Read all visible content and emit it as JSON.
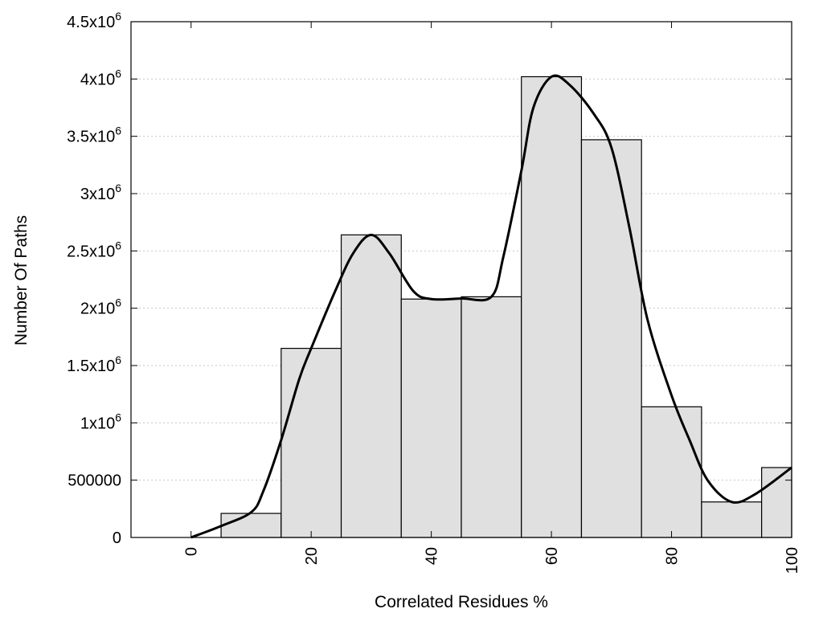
{
  "chart_data": {
    "type": "bar",
    "xlabel": "Correlated Residues %",
    "ylabel": "Number Of Paths",
    "xlim": [
      -10,
      100
    ],
    "ylim": [
      0,
      4500000
    ],
    "grid": true,
    "x_ticks": [
      {
        "value": 0,
        "label": "0"
      },
      {
        "value": 20,
        "label": "20"
      },
      {
        "value": 40,
        "label": "40"
      },
      {
        "value": 60,
        "label": "60"
      },
      {
        "value": 80,
        "label": "80"
      },
      {
        "value": 100,
        "label": "100"
      }
    ],
    "y_ticks": [
      {
        "value": 0,
        "mantissa": "0",
        "exp": ""
      },
      {
        "value": 500000,
        "mantissa": "500000",
        "exp": ""
      },
      {
        "value": 1000000,
        "mantissa": "1x10",
        "exp": "6"
      },
      {
        "value": 1500000,
        "mantissa": "1.5x10",
        "exp": "6"
      },
      {
        "value": 2000000,
        "mantissa": "2x10",
        "exp": "6"
      },
      {
        "value": 2500000,
        "mantissa": "2.5x10",
        "exp": "6"
      },
      {
        "value": 3000000,
        "mantissa": "3x10",
        "exp": "6"
      },
      {
        "value": 3500000,
        "mantissa": "3.5x10",
        "exp": "6"
      },
      {
        "value": 4000000,
        "mantissa": "4x10",
        "exp": "6"
      },
      {
        "value": 4500000,
        "mantissa": "4.5x10",
        "exp": "6"
      }
    ],
    "bin_width": 10,
    "bars": [
      {
        "x": 0,
        "value": 0
      },
      {
        "x": 10,
        "value": 210000
      },
      {
        "x": 20,
        "value": 1650000
      },
      {
        "x": 30,
        "value": 2640000
      },
      {
        "x": 40,
        "value": 2080000
      },
      {
        "x": 50,
        "value": 2100000
      },
      {
        "x": 60,
        "value": 4020000
      },
      {
        "x": 70,
        "value": 3470000
      },
      {
        "x": 80,
        "value": 1140000
      },
      {
        "x": 90,
        "value": 310000
      },
      {
        "x": 100,
        "value": 610000
      }
    ],
    "curve": [
      [
        0,
        0
      ],
      [
        5,
        100000
      ],
      [
        10,
        220000
      ],
      [
        12,
        400000
      ],
      [
        15,
        850000
      ],
      [
        18,
        1380000
      ],
      [
        20,
        1650000
      ],
      [
        24,
        2150000
      ],
      [
        27,
        2480000
      ],
      [
        30,
        2640000
      ],
      [
        33,
        2480000
      ],
      [
        37,
        2150000
      ],
      [
        40,
        2080000
      ],
      [
        45,
        2085000
      ],
      [
        50,
        2100000
      ],
      [
        52,
        2450000
      ],
      [
        55,
        3200000
      ],
      [
        57,
        3750000
      ],
      [
        60,
        4020000
      ],
      [
        63,
        3950000
      ],
      [
        67,
        3700000
      ],
      [
        70,
        3400000
      ],
      [
        73,
        2700000
      ],
      [
        76,
        1900000
      ],
      [
        80,
        1240000
      ],
      [
        83,
        850000
      ],
      [
        86,
        500000
      ],
      [
        90,
        310000
      ],
      [
        94,
        380000
      ],
      [
        100,
        610000
      ]
    ]
  }
}
